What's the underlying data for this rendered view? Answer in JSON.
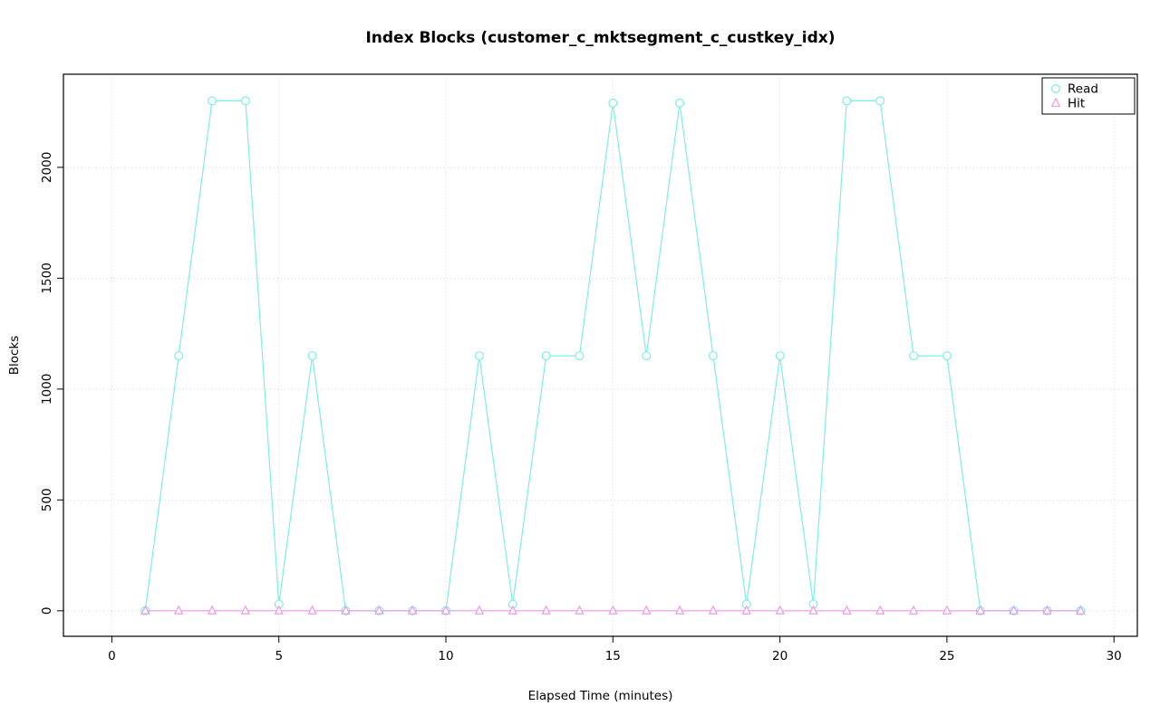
{
  "figure": {
    "background": "#FFFFFF",
    "axis_color": "#000000"
  },
  "chart_data": {
    "type": "line",
    "title": "Index Blocks (customer_c_mktsegment_c_custkey_idx)",
    "xlabel": "Elapsed Time (minutes)",
    "ylabel": "Blocks",
    "x": [
      1,
      2,
      3,
      4,
      5,
      6,
      7,
      8,
      9,
      10,
      11,
      12,
      13,
      14,
      15,
      16,
      17,
      18,
      19,
      20,
      21,
      22,
      23,
      24,
      25,
      26,
      27,
      28,
      29
    ],
    "series": [
      {
        "name": "Read",
        "marker": "circle",
        "color": "#7CEFE6",
        "values": [
          0,
          1150,
          2300,
          2300,
          30,
          1150,
          0,
          0,
          0,
          0,
          1150,
          30,
          1150,
          1150,
          2290,
          1150,
          2290,
          1150,
          30,
          1150,
          30,
          2300,
          2300,
          1150,
          1150,
          0,
          0,
          0,
          0
        ]
      },
      {
        "name": "Hit",
        "marker": "triangle",
        "color": "#EE99EA",
        "values": [
          0,
          0,
          0,
          0,
          0,
          0,
          0,
          0,
          0,
          0,
          0,
          0,
          0,
          0,
          0,
          0,
          0,
          0,
          0,
          0,
          0,
          0,
          0,
          0,
          0,
          0,
          0,
          0,
          0
        ]
      }
    ],
    "xticks": [
      0,
      5,
      10,
      15,
      20,
      25,
      30
    ],
    "yticks": [
      0,
      500,
      1000,
      1500,
      2000
    ],
    "xlim": [
      -1.45,
      30.7
    ],
    "ylim": [
      -115,
      2420
    ],
    "grid": true,
    "grid_color": "#D9D9D9",
    "legend_position": "top-right",
    "legend_labels": [
      "Read",
      "Hit"
    ]
  }
}
